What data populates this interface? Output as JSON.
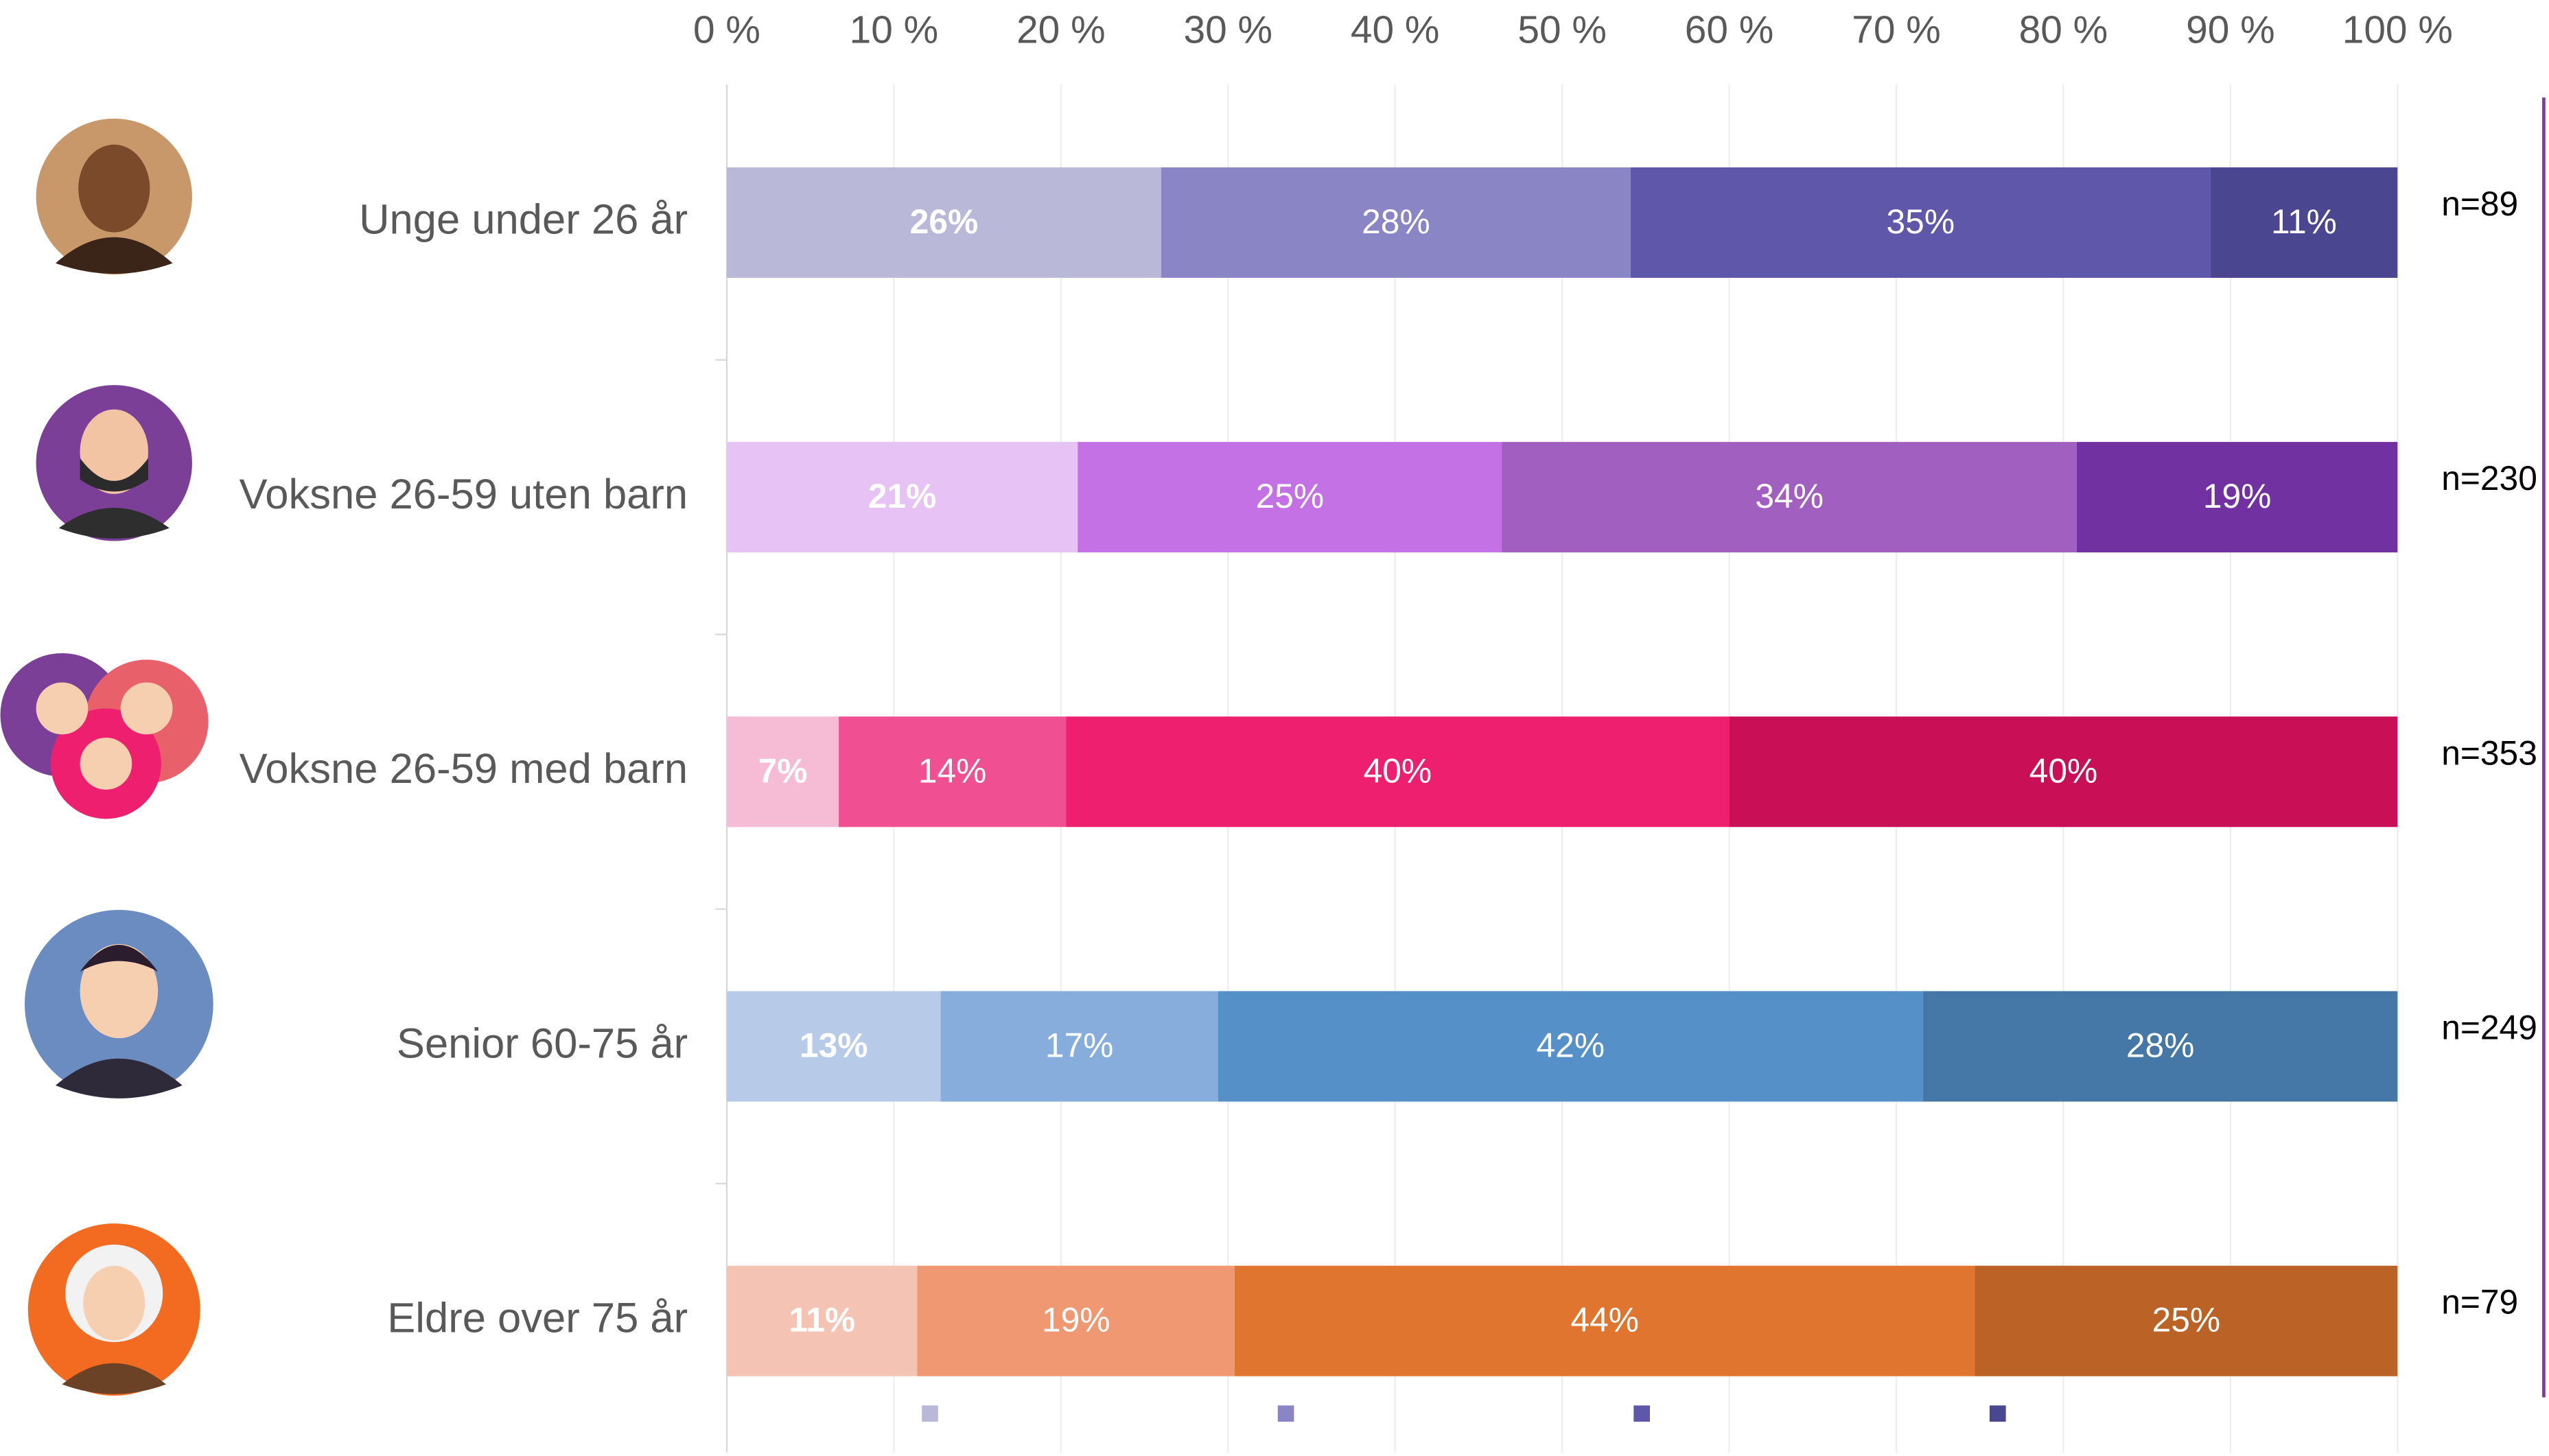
{
  "chart_data": {
    "type": "stacked-bar-horizontal",
    "categories": [
      "Unge under 26 år",
      "Voksne 26-59 uten barn",
      "Voksne 26-59 med barn",
      "Senior 60-75 år",
      "Eldre over 75 år"
    ],
    "n_labels": [
      "n=89",
      "n=230",
      "n=353",
      "n=249",
      "n=79"
    ],
    "series": [
      {
        "colors": [
          "#b9b8d9",
          "#e6c2f5",
          "#f7bcd5",
          "#b7cbe8",
          "#f4c3b3"
        ],
        "values": [
          26.0,
          21.0,
          6.7,
          12.8,
          11.4
        ],
        "value_labels": [
          "26%",
          "21%",
          "7%",
          "13%",
          "11%"
        ]
      },
      {
        "colors": [
          "#8a86c5",
          "#c471e6",
          "#f04f91",
          "#86addb",
          "#f09872"
        ],
        "values": [
          28.1,
          25.4,
          13.6,
          16.6,
          19.0
        ],
        "value_labels": [
          "28%",
          "25%",
          "14%",
          "17%",
          "19%"
        ]
      },
      {
        "colors": [
          "#5e57aa",
          "#a160bf",
          "#ee1f6f",
          "#5591c8",
          "#e0752f"
        ],
        "values": [
          34.7,
          34.4,
          39.7,
          42.2,
          44.3
        ],
        "value_labels": [
          "35%",
          "34%",
          "40%",
          "42%",
          "44%"
        ]
      },
      {
        "colors": [
          "#4a4690",
          "#7231a0",
          "#c90f55",
          "#4678a7",
          "#bb6226"
        ],
        "values": [
          11.2,
          19.2,
          40.0,
          28.4,
          25.3
        ],
        "value_labels": [
          "11%",
          "19%",
          "40%",
          "28%",
          "25%"
        ]
      }
    ],
    "xlim": [
      0,
      100
    ],
    "xticks": [
      {
        "value": 0,
        "label": "0 %"
      },
      {
        "value": 10,
        "label": "10 %"
      },
      {
        "value": 20,
        "label": "20 %"
      },
      {
        "value": 30,
        "label": "30 %"
      },
      {
        "value": 40,
        "label": "40 %"
      },
      {
        "value": 50,
        "label": "50 %"
      },
      {
        "value": 60,
        "label": "60 %"
      },
      {
        "value": 70,
        "label": "70 %"
      },
      {
        "value": 80,
        "label": "80 %"
      },
      {
        "value": 90,
        "label": "90 %"
      },
      {
        "value": 100,
        "label": "100 %"
      }
    ],
    "grid": true
  }
}
